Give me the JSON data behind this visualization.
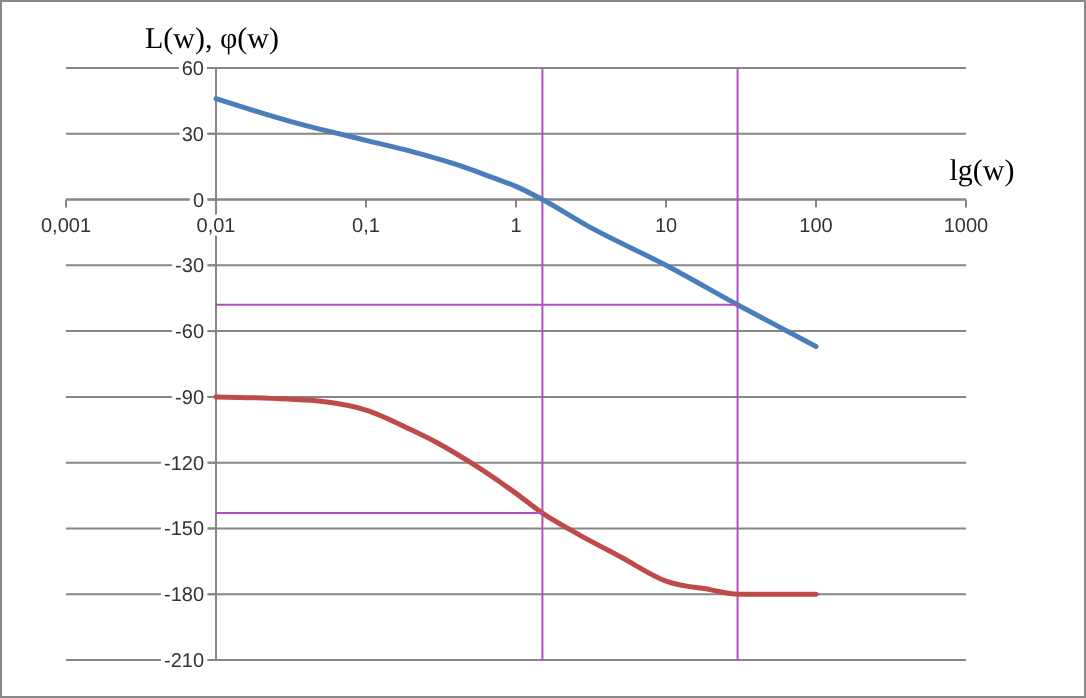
{
  "chart_data": {
    "type": "line",
    "ylabel": "L(w), φ(w)",
    "xlabel": "lg(w)",
    "log": "x",
    "xlim": [
      0.001,
      1000
    ],
    "xticks": [
      {
        "value": 0.001,
        "label": "0,001"
      },
      {
        "value": 0.01,
        "label": "0,01"
      },
      {
        "value": 0.1,
        "label": "0,1"
      },
      1,
      10,
      100,
      1000
    ],
    "ylim": [
      -210,
      60
    ],
    "yticks": [
      -210,
      -180,
      -150,
      -120,
      -90,
      -60,
      -30,
      0,
      30,
      60
    ],
    "grid": "y",
    "marker": "none",
    "line_style": "solid",
    "series": [
      {
        "color": "#4a7ebb",
        "x": [
          0.01,
          0.03,
          0.1,
          0.2,
          0.4,
          0.7,
          1,
          1.5,
          3,
          10,
          30,
          100
        ],
        "values": [
          46,
          36,
          27,
          22,
          16,
          10,
          6,
          0,
          -12,
          -30,
          -48,
          -67
        ]
      },
      {
        "color": "#be4b48",
        "x": [
          0.01,
          0.03,
          0.05,
          0.1,
          0.2,
          0.3,
          0.5,
          1,
          1.5,
          2.5,
          5,
          10,
          20,
          30,
          100
        ],
        "values": [
          -90,
          -91,
          -92,
          -96,
          -105,
          -111,
          -120,
          -134,
          -143,
          -152,
          -163,
          -174,
          -178,
          -180,
          -180
        ]
      },
      {
        "color": "#b050c0",
        "x": [
          0.01,
          30
        ],
        "values": [
          -48,
          -48
        ]
      },
      {
        "color": "#b050c0",
        "x": [
          0.01,
          1.5
        ],
        "values": [
          -143,
          -143
        ]
      }
    ],
    "ref_lines": [
      {
        "axis": "x",
        "value": 1.5,
        "color": "#b050c0"
      },
      {
        "axis": "x",
        "value": 30,
        "color": "#b050c0"
      }
    ]
  }
}
